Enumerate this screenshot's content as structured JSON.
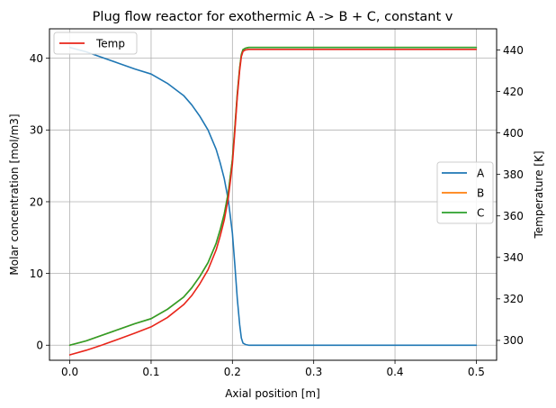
{
  "chart_data": {
    "type": "line",
    "title": "Plug flow reactor for exothermic A -> B + C, constant v",
    "xlabel": "Axial position [m]",
    "ylabel": "Molar concentration [mol/m3]",
    "y2label": "Temperature [K]",
    "xlim": [
      -0.025,
      0.525
    ],
    "ylim": [
      -2.1,
      44.1
    ],
    "y2lim": [
      290.4,
      450.2
    ],
    "xticks": [
      0.0,
      0.1,
      0.2,
      0.3,
      0.4,
      0.5
    ],
    "xtick_labels": [
      "0.0",
      "0.1",
      "0.2",
      "0.3",
      "0.4",
      "0.5"
    ],
    "yticks": [
      0,
      10,
      20,
      30,
      40
    ],
    "ytick_labels": [
      "0",
      "10",
      "20",
      "30",
      "40"
    ],
    "y2ticks": [
      300,
      320,
      340,
      360,
      380,
      400,
      420,
      440
    ],
    "y2tick_labels": [
      "300",
      "320",
      "340",
      "360",
      "380",
      "400",
      "420",
      "440"
    ],
    "grid": true,
    "legends": [
      {
        "placement": "upper-left",
        "entries": [
          "Temp"
        ]
      },
      {
        "placement": "center-right",
        "entries": [
          "A",
          "B",
          "C"
        ]
      }
    ],
    "series": [
      {
        "name": "A",
        "axis": "left",
        "color": "#1f77b4",
        "x": [
          0.0,
          0.02,
          0.04,
          0.06,
          0.08,
          0.1,
          0.12,
          0.14,
          0.15,
          0.16,
          0.17,
          0.18,
          0.185,
          0.19,
          0.195,
          0.2,
          0.203,
          0.206,
          0.209,
          0.211,
          0.213,
          0.216,
          0.22,
          0.25,
          0.3,
          0.4,
          0.5
        ],
        "y": [
          41.5,
          40.9,
          40.1,
          39.3,
          38.5,
          37.8,
          36.5,
          34.8,
          33.5,
          31.9,
          30.0,
          27.3,
          25.4,
          23.2,
          20.2,
          15.6,
          11.2,
          6.5,
          2.8,
          1.0,
          0.3,
          0.1,
          0.0,
          0.0,
          0.0,
          0.0,
          0.0
        ]
      },
      {
        "name": "B",
        "axis": "left",
        "color": "#ff7f0e",
        "x": [
          0.0,
          0.02,
          0.04,
          0.06,
          0.08,
          0.1,
          0.12,
          0.14,
          0.15,
          0.16,
          0.17,
          0.18,
          0.185,
          0.19,
          0.195,
          0.2,
          0.203,
          0.206,
          0.209,
          0.211,
          0.213,
          0.216,
          0.22,
          0.25,
          0.3,
          0.4,
          0.5
        ],
        "y": [
          0.0,
          0.6,
          1.4,
          2.2,
          3.0,
          3.7,
          5.0,
          6.7,
          8.0,
          9.6,
          11.5,
          14.2,
          16.1,
          18.3,
          21.3,
          25.9,
          30.3,
          35.0,
          38.7,
          40.5,
          41.2,
          41.4,
          41.5,
          41.5,
          41.5,
          41.5,
          41.5
        ]
      },
      {
        "name": "C",
        "axis": "left",
        "color": "#2ca02c",
        "x": [
          0.0,
          0.02,
          0.04,
          0.06,
          0.08,
          0.1,
          0.12,
          0.14,
          0.15,
          0.16,
          0.17,
          0.18,
          0.185,
          0.19,
          0.195,
          0.2,
          0.203,
          0.206,
          0.209,
          0.211,
          0.213,
          0.216,
          0.22,
          0.25,
          0.3,
          0.4,
          0.5
        ],
        "y": [
          0.0,
          0.6,
          1.4,
          2.2,
          3.0,
          3.7,
          5.0,
          6.7,
          8.0,
          9.6,
          11.5,
          14.2,
          16.1,
          18.3,
          21.3,
          25.9,
          30.3,
          35.0,
          38.7,
          40.5,
          41.2,
          41.4,
          41.5,
          41.5,
          41.5,
          41.5,
          41.5
        ]
      },
      {
        "name": "Temp",
        "axis": "right",
        "color": "#e8251a",
        "x": [
          0.0,
          0.02,
          0.04,
          0.06,
          0.08,
          0.1,
          0.12,
          0.14,
          0.15,
          0.16,
          0.17,
          0.18,
          0.185,
          0.19,
          0.195,
          0.2,
          0.203,
          0.206,
          0.209,
          0.211,
          0.213,
          0.216,
          0.22,
          0.25,
          0.3,
          0.4,
          0.5
        ],
        "y": [
          293.0,
          295.2,
          297.8,
          300.6,
          303.5,
          306.5,
          311.0,
          317.2,
          321.6,
          327.3,
          334.0,
          343.6,
          350.3,
          358.1,
          368.7,
          385.0,
          400.6,
          417.3,
          430.4,
          436.8,
          439.3,
          440.0,
          440.3,
          440.3,
          440.3,
          440.3,
          440.3
        ]
      }
    ]
  }
}
